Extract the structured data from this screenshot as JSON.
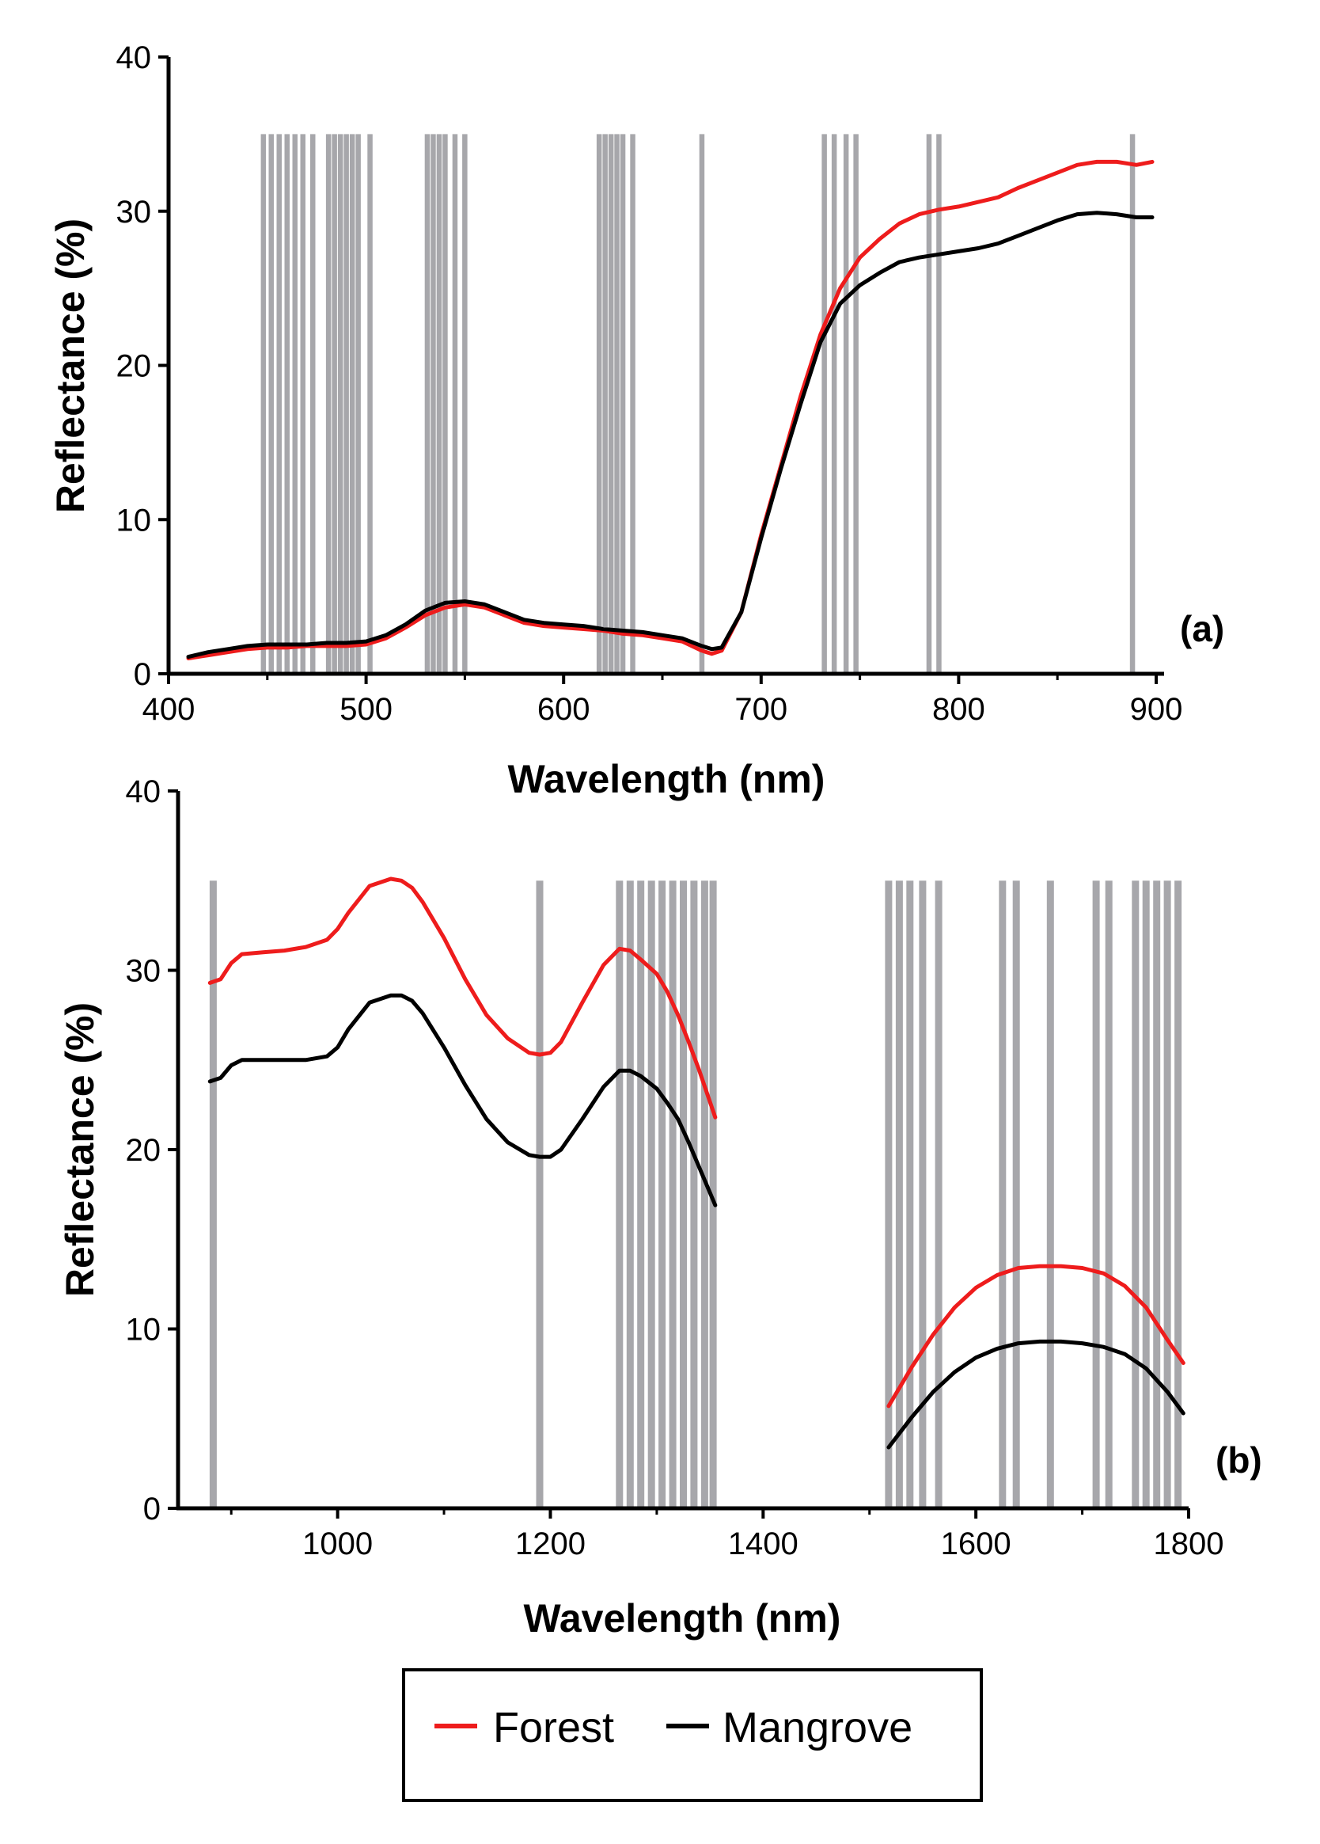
{
  "figure": {
    "colors": {
      "forest": "#ee1c1c",
      "mangrove": "#000000",
      "band": "#a7a7ab",
      "axis": "#000000"
    }
  },
  "legend": {
    "items": [
      {
        "label": "Forest",
        "color": "#ee1c1c"
      },
      {
        "label": "Mangrove",
        "color": "#000000"
      }
    ]
  },
  "chart_data": [
    {
      "type": "line",
      "panel_label": "(a)",
      "xlabel": "Wavelength (nm)",
      "ylabel": "Reflectance (%)",
      "xlim": [
        400,
        900
      ],
      "ylim": [
        0,
        40
      ],
      "x_ticks": [
        "400",
        "500",
        "600",
        "700",
        "800",
        "900"
      ],
      "y_ticks": [
        "0",
        "10",
        "20",
        "30",
        "40"
      ],
      "band_top": 35,
      "bands": [
        448,
        452,
        456,
        460,
        464,
        468,
        473,
        481,
        484,
        487,
        490,
        493,
        496,
        502,
        531,
        534,
        537,
        540,
        545,
        550,
        618,
        621,
        624,
        627,
        630,
        635,
        670,
        732,
        737,
        743,
        748,
        785,
        790,
        888
      ],
      "series": [
        {
          "name": "Forest",
          "x": [
            410,
            420,
            430,
            440,
            450,
            460,
            470,
            480,
            490,
            500,
            510,
            520,
            530,
            540,
            550,
            560,
            570,
            580,
            590,
            600,
            610,
            620,
            630,
            640,
            650,
            660,
            670,
            675,
            680,
            690,
            700,
            710,
            720,
            730,
            740,
            750,
            760,
            770,
            780,
            790,
            800,
            810,
            820,
            830,
            840,
            850,
            860,
            870,
            880,
            890,
            898
          ],
          "y": [
            1.0,
            1.2,
            1.4,
            1.6,
            1.7,
            1.7,
            1.8,
            1.8,
            1.8,
            1.9,
            2.3,
            3.0,
            3.8,
            4.3,
            4.5,
            4.3,
            3.8,
            3.3,
            3.1,
            3.0,
            2.9,
            2.8,
            2.6,
            2.5,
            2.3,
            2.1,
            1.5,
            1.3,
            1.5,
            4.0,
            9.0,
            13.5,
            18.0,
            22.0,
            25.0,
            27.0,
            28.2,
            29.2,
            29.8,
            30.1,
            30.3,
            30.6,
            30.9,
            31.5,
            32.0,
            32.5,
            33.0,
            33.2,
            33.2,
            33.0,
            33.2
          ]
        },
        {
          "name": "Mangrove",
          "x": [
            410,
            420,
            430,
            440,
            450,
            460,
            470,
            480,
            490,
            500,
            510,
            520,
            530,
            540,
            550,
            560,
            570,
            580,
            590,
            600,
            610,
            620,
            630,
            640,
            650,
            660,
            670,
            675,
            680,
            690,
            700,
            710,
            720,
            730,
            740,
            750,
            760,
            770,
            780,
            790,
            800,
            810,
            820,
            830,
            840,
            850,
            860,
            870,
            880,
            890,
            898
          ],
          "y": [
            1.1,
            1.4,
            1.6,
            1.8,
            1.9,
            1.9,
            1.9,
            2.0,
            2.0,
            2.1,
            2.5,
            3.2,
            4.1,
            4.6,
            4.7,
            4.5,
            4.0,
            3.5,
            3.3,
            3.2,
            3.1,
            2.9,
            2.8,
            2.7,
            2.5,
            2.3,
            1.8,
            1.6,
            1.7,
            4.0,
            8.8,
            13.3,
            17.5,
            21.5,
            24.0,
            25.2,
            26.0,
            26.7,
            27.0,
            27.2,
            27.4,
            27.6,
            27.9,
            28.4,
            28.9,
            29.4,
            29.8,
            29.9,
            29.8,
            29.6,
            29.6
          ]
        }
      ]
    },
    {
      "type": "line",
      "panel_label": "(b)",
      "xlabel": "Wavelength (nm)",
      "ylabel": "Reflectance (%)",
      "xlim": [
        850,
        1800
      ],
      "ylim": [
        0,
        40
      ],
      "x_ticks": [
        "1000",
        "1200",
        "1400",
        "1600",
        "1800"
      ],
      "y_ticks": [
        "0",
        "10",
        "20",
        "30",
        "40"
      ],
      "band_top": 35,
      "bands": [
        883,
        1190,
        1265,
        1275,
        1285,
        1295,
        1305,
        1315,
        1325,
        1335,
        1345,
        1353,
        1518,
        1528,
        1538,
        1550,
        1565,
        1625,
        1638,
        1670,
        1713,
        1725,
        1750,
        1760,
        1770,
        1780,
        1790
      ],
      "series": [
        {
          "name": "Forest",
          "x": [
            880,
            890,
            900,
            910,
            930,
            950,
            970,
            990,
            1000,
            1010,
            1030,
            1050,
            1060,
            1070,
            1080,
            1100,
            1120,
            1140,
            1160,
            1180,
            1190,
            1200,
            1210,
            1230,
            1250,
            1265,
            1275,
            1285,
            1300,
            1310,
            1320,
            1330,
            1340,
            1355,
            1518,
            1540,
            1560,
            1580,
            1600,
            1620,
            1640,
            1660,
            1680,
            1700,
            1720,
            1740,
            1760,
            1780,
            1795
          ],
          "y": [
            29.3,
            29.5,
            30.4,
            30.9,
            31.0,
            31.1,
            31.3,
            31.7,
            32.3,
            33.2,
            34.7,
            35.1,
            35.0,
            34.6,
            33.8,
            31.8,
            29.5,
            27.5,
            26.2,
            25.4,
            25.3,
            25.4,
            26.0,
            28.2,
            30.3,
            31.2,
            31.1,
            30.6,
            29.8,
            28.8,
            27.5,
            26.0,
            24.4,
            21.8,
            5.7,
            7.9,
            9.7,
            11.2,
            12.3,
            13.0,
            13.4,
            13.5,
            13.5,
            13.4,
            13.1,
            12.4,
            11.2,
            9.4,
            8.1
          ]
        },
        {
          "name": "Mangrove",
          "x": [
            880,
            890,
            900,
            910,
            930,
            950,
            970,
            990,
            1000,
            1010,
            1030,
            1050,
            1060,
            1070,
            1080,
            1100,
            1120,
            1140,
            1160,
            1180,
            1190,
            1200,
            1210,
            1230,
            1250,
            1265,
            1275,
            1285,
            1300,
            1310,
            1320,
            1330,
            1340,
            1355,
            1518,
            1540,
            1560,
            1580,
            1600,
            1620,
            1640,
            1660,
            1680,
            1700,
            1720,
            1740,
            1760,
            1780,
            1795
          ],
          "y": [
            23.8,
            24.0,
            24.7,
            25.0,
            25.0,
            25.0,
            25.0,
            25.2,
            25.7,
            26.7,
            28.2,
            28.6,
            28.6,
            28.3,
            27.6,
            25.7,
            23.6,
            21.7,
            20.4,
            19.7,
            19.6,
            19.6,
            20.0,
            21.7,
            23.5,
            24.4,
            24.4,
            24.1,
            23.4,
            22.6,
            21.7,
            20.4,
            19.0,
            16.9,
            3.4,
            5.1,
            6.5,
            7.6,
            8.4,
            8.9,
            9.2,
            9.3,
            9.3,
            9.2,
            9.0,
            8.6,
            7.8,
            6.5,
            5.3
          ]
        }
      ]
    }
  ]
}
